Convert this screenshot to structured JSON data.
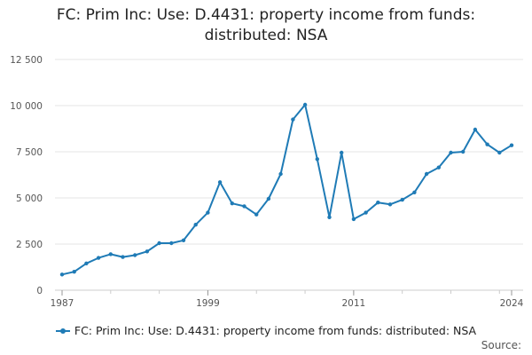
{
  "title_lines": [
    "FC: Prim Inc: Use: D.4431: property income from funds:",
    "distributed: NSA"
  ],
  "source_label": "Source:",
  "colors": {
    "series": "#1f7bb6",
    "grid": "#e6e6e6",
    "axis": "#cccccc",
    "text": "#555555"
  },
  "chart_data": {
    "type": "line",
    "title": "FC: Prim Inc: Use: D.4431: property income from funds: distributed: NSA",
    "xlabel": "",
    "ylabel": "",
    "xlim": [
      1987,
      2024
    ],
    "ylim": [
      0,
      12500
    ],
    "x_ticks": [
      "1987",
      "1999",
      "2011",
      "2024"
    ],
    "y_ticks": [
      "0",
      "2 500",
      "5 000",
      "7 500",
      "10 000",
      "12 500"
    ],
    "grid": true,
    "legend_position": "bottom",
    "x": [
      1987,
      1988,
      1989,
      1990,
      1991,
      1992,
      1993,
      1994,
      1995,
      1996,
      1997,
      1998,
      1999,
      2000,
      2001,
      2002,
      2003,
      2004,
      2005,
      2006,
      2007,
      2008,
      2009,
      2010,
      2011,
      2012,
      2013,
      2014,
      2015,
      2016,
      2017,
      2018,
      2019,
      2020,
      2021,
      2022,
      2023,
      2024
    ],
    "series": [
      {
        "name": "FC: Prim Inc: Use: D.4431: property income from funds: distributed: NSA",
        "values": [
          850,
          1000,
          1450,
          1750,
          1950,
          1800,
          1900,
          2100,
          2550,
          2550,
          2700,
          3550,
          4200,
          5850,
          4700,
          4550,
          4100,
          4950,
          6300,
          9250,
          10050,
          7100,
          3950,
          7450,
          3850,
          4200,
          4750,
          4650,
          4900,
          5300,
          6300,
          6650,
          7450,
          7500,
          8700,
          7900,
          7450,
          7850
        ]
      }
    ]
  }
}
